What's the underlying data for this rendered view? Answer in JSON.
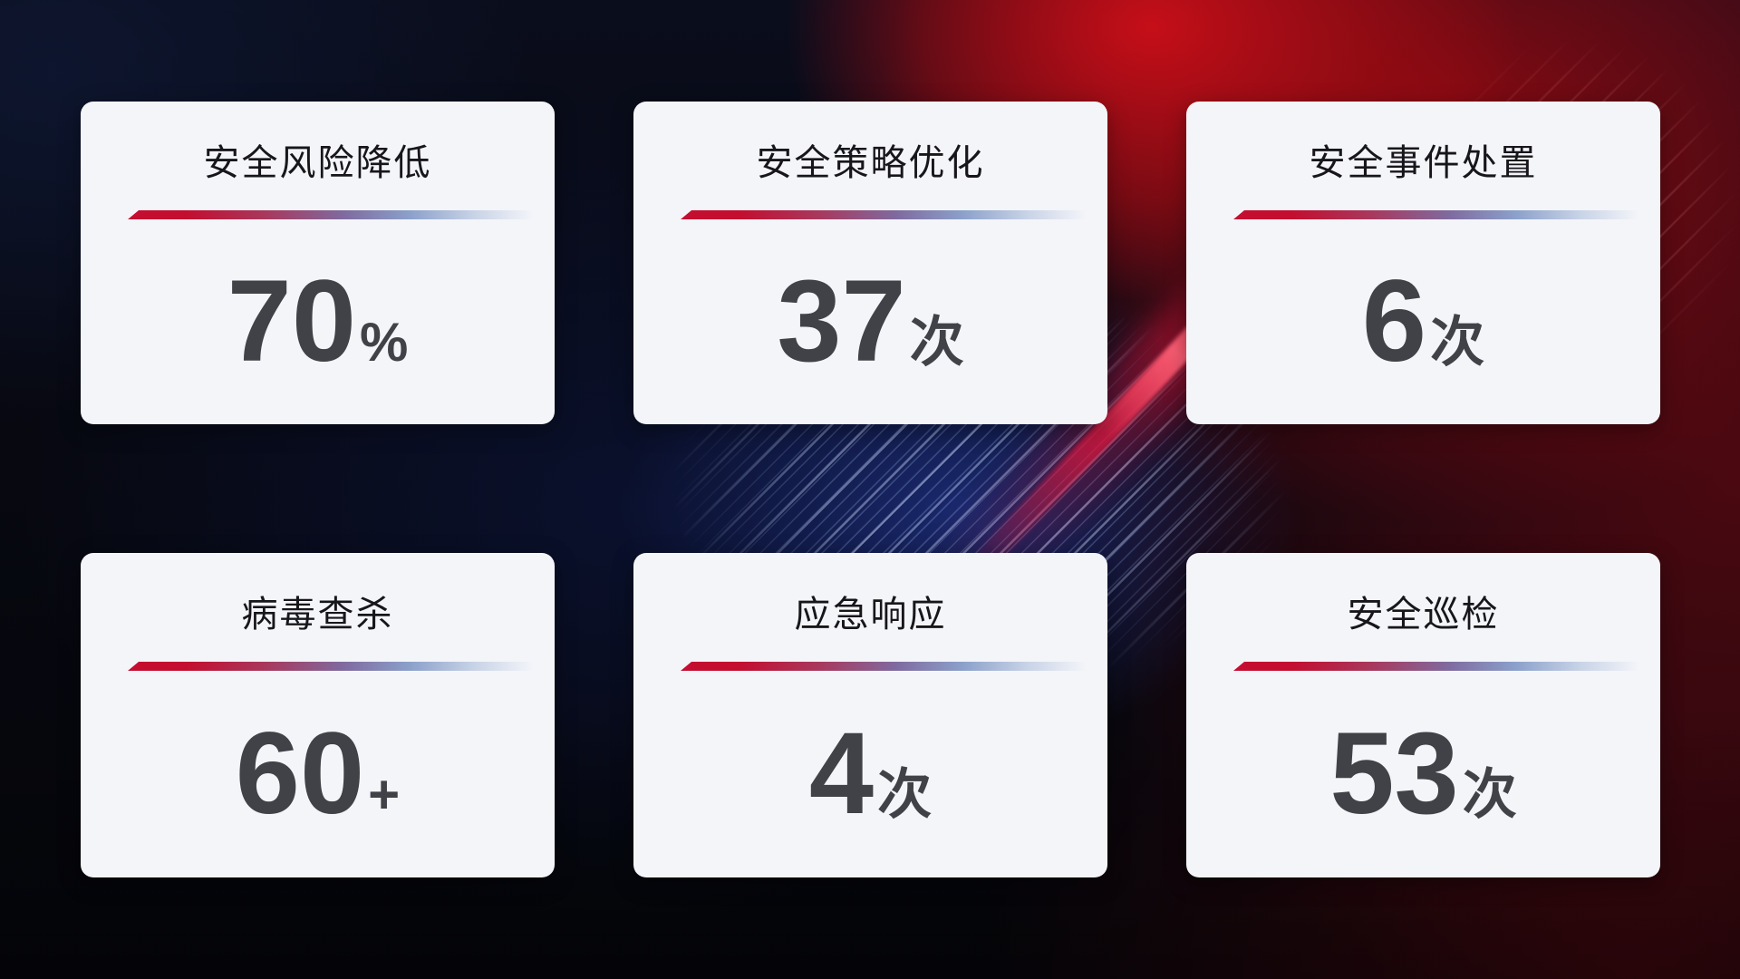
{
  "page": {
    "kind": "security-operations-stat-dashboard",
    "background_theme": {
      "base": "#07080f",
      "red_glow": "#b00d14",
      "blue_glow": "#1b2b76",
      "beam": "#e11840"
    }
  },
  "card_style": {
    "background": "#f4f5f9",
    "title_color": "#17171b",
    "value_color": "#404248",
    "divider_gradient_start": "#c50e31",
    "divider_gradient_mid": "#8ba0ca",
    "divider_gradient_end": "transparent"
  },
  "cards": [
    {
      "id": "risk-reduction",
      "title": "安全风险降低",
      "value": "70",
      "unit": "%"
    },
    {
      "id": "policy-optimization",
      "title": "安全策略优化",
      "value": "37",
      "unit": "次"
    },
    {
      "id": "incident-handling",
      "title": "安全事件处置",
      "value": "6",
      "unit": "次"
    },
    {
      "id": "virus-scan",
      "title": "病毒查杀",
      "value": "60",
      "unit": "+"
    },
    {
      "id": "emergency-response",
      "title": "应急响应",
      "value": "4",
      "unit": "次"
    },
    {
      "id": "security-inspection",
      "title": "安全巡检",
      "value": "53",
      "unit": "次"
    }
  ]
}
